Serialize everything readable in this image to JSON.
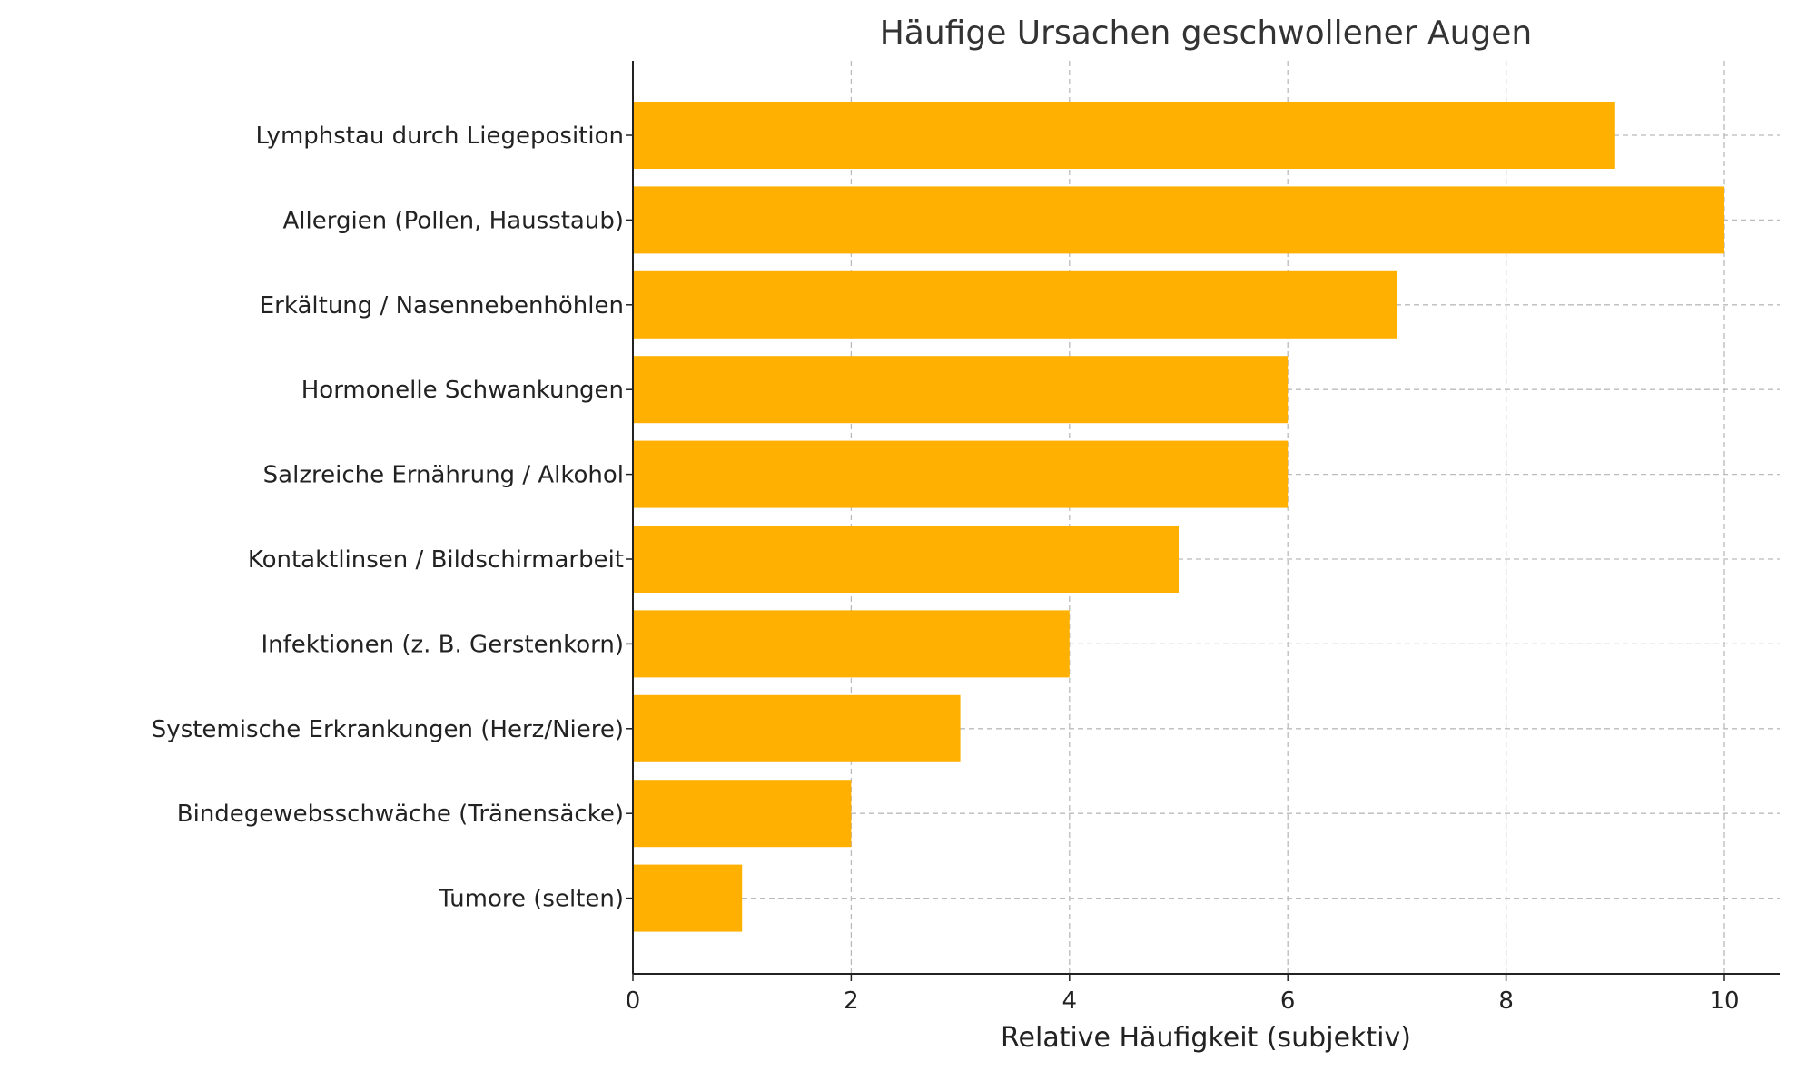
{
  "chart_data": {
    "type": "bar",
    "orientation": "horizontal",
    "title": "Häufige Ursachen geschwollener Augen",
    "xlabel": "Relative Häufigkeit (subjektiv)",
    "ylabel": "",
    "categories": [
      "Lymphstau durch Liegeposition",
      "Allergien (Pollen, Hausstaub)",
      "Erkältung / Nasennebenhöhlen",
      "Hormonelle Schwankungen",
      "Salzreiche Ernährung / Alkohol",
      "Kontaktlinsen / Bildschirmarbeit",
      "Infektionen (z. B. Gerstenkorn)",
      "Systemische Erkrankungen (Herz/Niere)",
      "Bindegewebsschwäche (Tränensäcke)",
      "Tumore (selten)"
    ],
    "values": [
      9,
      10,
      7,
      6,
      6,
      5,
      4,
      3,
      2,
      1
    ],
    "xlim": [
      0,
      10.5
    ],
    "xticks": [
      "0",
      "2",
      "4",
      "6",
      "8",
      "10"
    ],
    "grid": true,
    "bar_color": "#FFB000"
  }
}
